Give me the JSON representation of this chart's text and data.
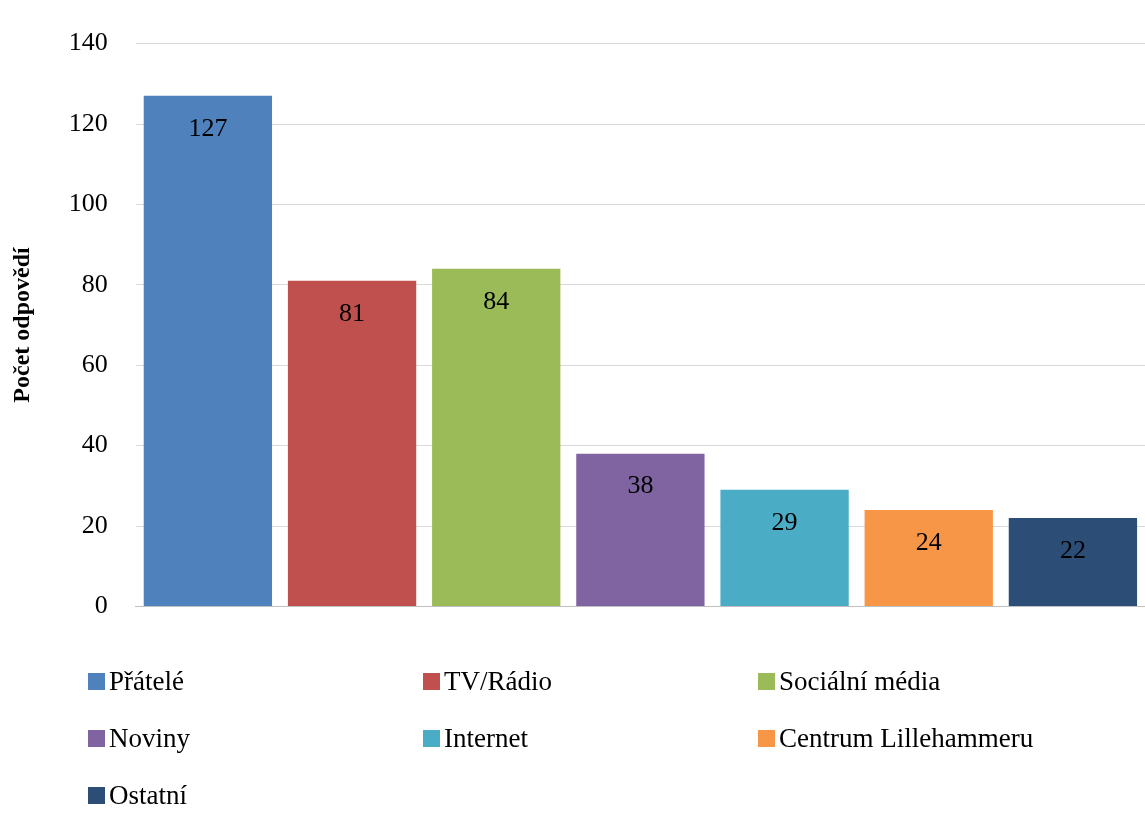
{
  "chart_data": {
    "type": "bar",
    "ylabel": "Počet odpovědí",
    "categories": [
      null,
      null,
      null,
      null,
      null,
      null,
      null
    ],
    "series": [
      {
        "name": "Přátelé",
        "color": "#4f81bd",
        "values": [
          127,
          null,
          null,
          null,
          null,
          null,
          null
        ]
      },
      {
        "name": "TV/Rádio",
        "color": "#c0504d",
        "values": [
          null,
          81,
          null,
          null,
          null,
          null,
          null
        ]
      },
      {
        "name": "Sociální média",
        "color": "#9bbb59",
        "values": [
          null,
          null,
          84,
          null,
          null,
          null,
          null
        ]
      },
      {
        "name": "Noviny",
        "color": "#8064a2",
        "values": [
          null,
          null,
          null,
          38,
          null,
          null,
          null
        ]
      },
      {
        "name": "Internet",
        "color": "#4bacc6",
        "values": [
          null,
          null,
          null,
          null,
          29,
          null,
          null
        ]
      },
      {
        "name": "Centrum Lillehammeru",
        "color": "#f79646",
        "values": [
          null,
          null,
          null,
          null,
          null,
          24,
          null
        ]
      },
      {
        "name": "Ostatní",
        "color": "#2c4d75",
        "values": [
          null,
          null,
          null,
          null,
          null,
          null,
          22
        ]
      }
    ],
    "ylim": [
      0,
      140
    ],
    "yticks": [
      0,
      20,
      40,
      60,
      80,
      100,
      120,
      140
    ],
    "grid": "y",
    "legend": "bottom",
    "data_labels": true
  }
}
